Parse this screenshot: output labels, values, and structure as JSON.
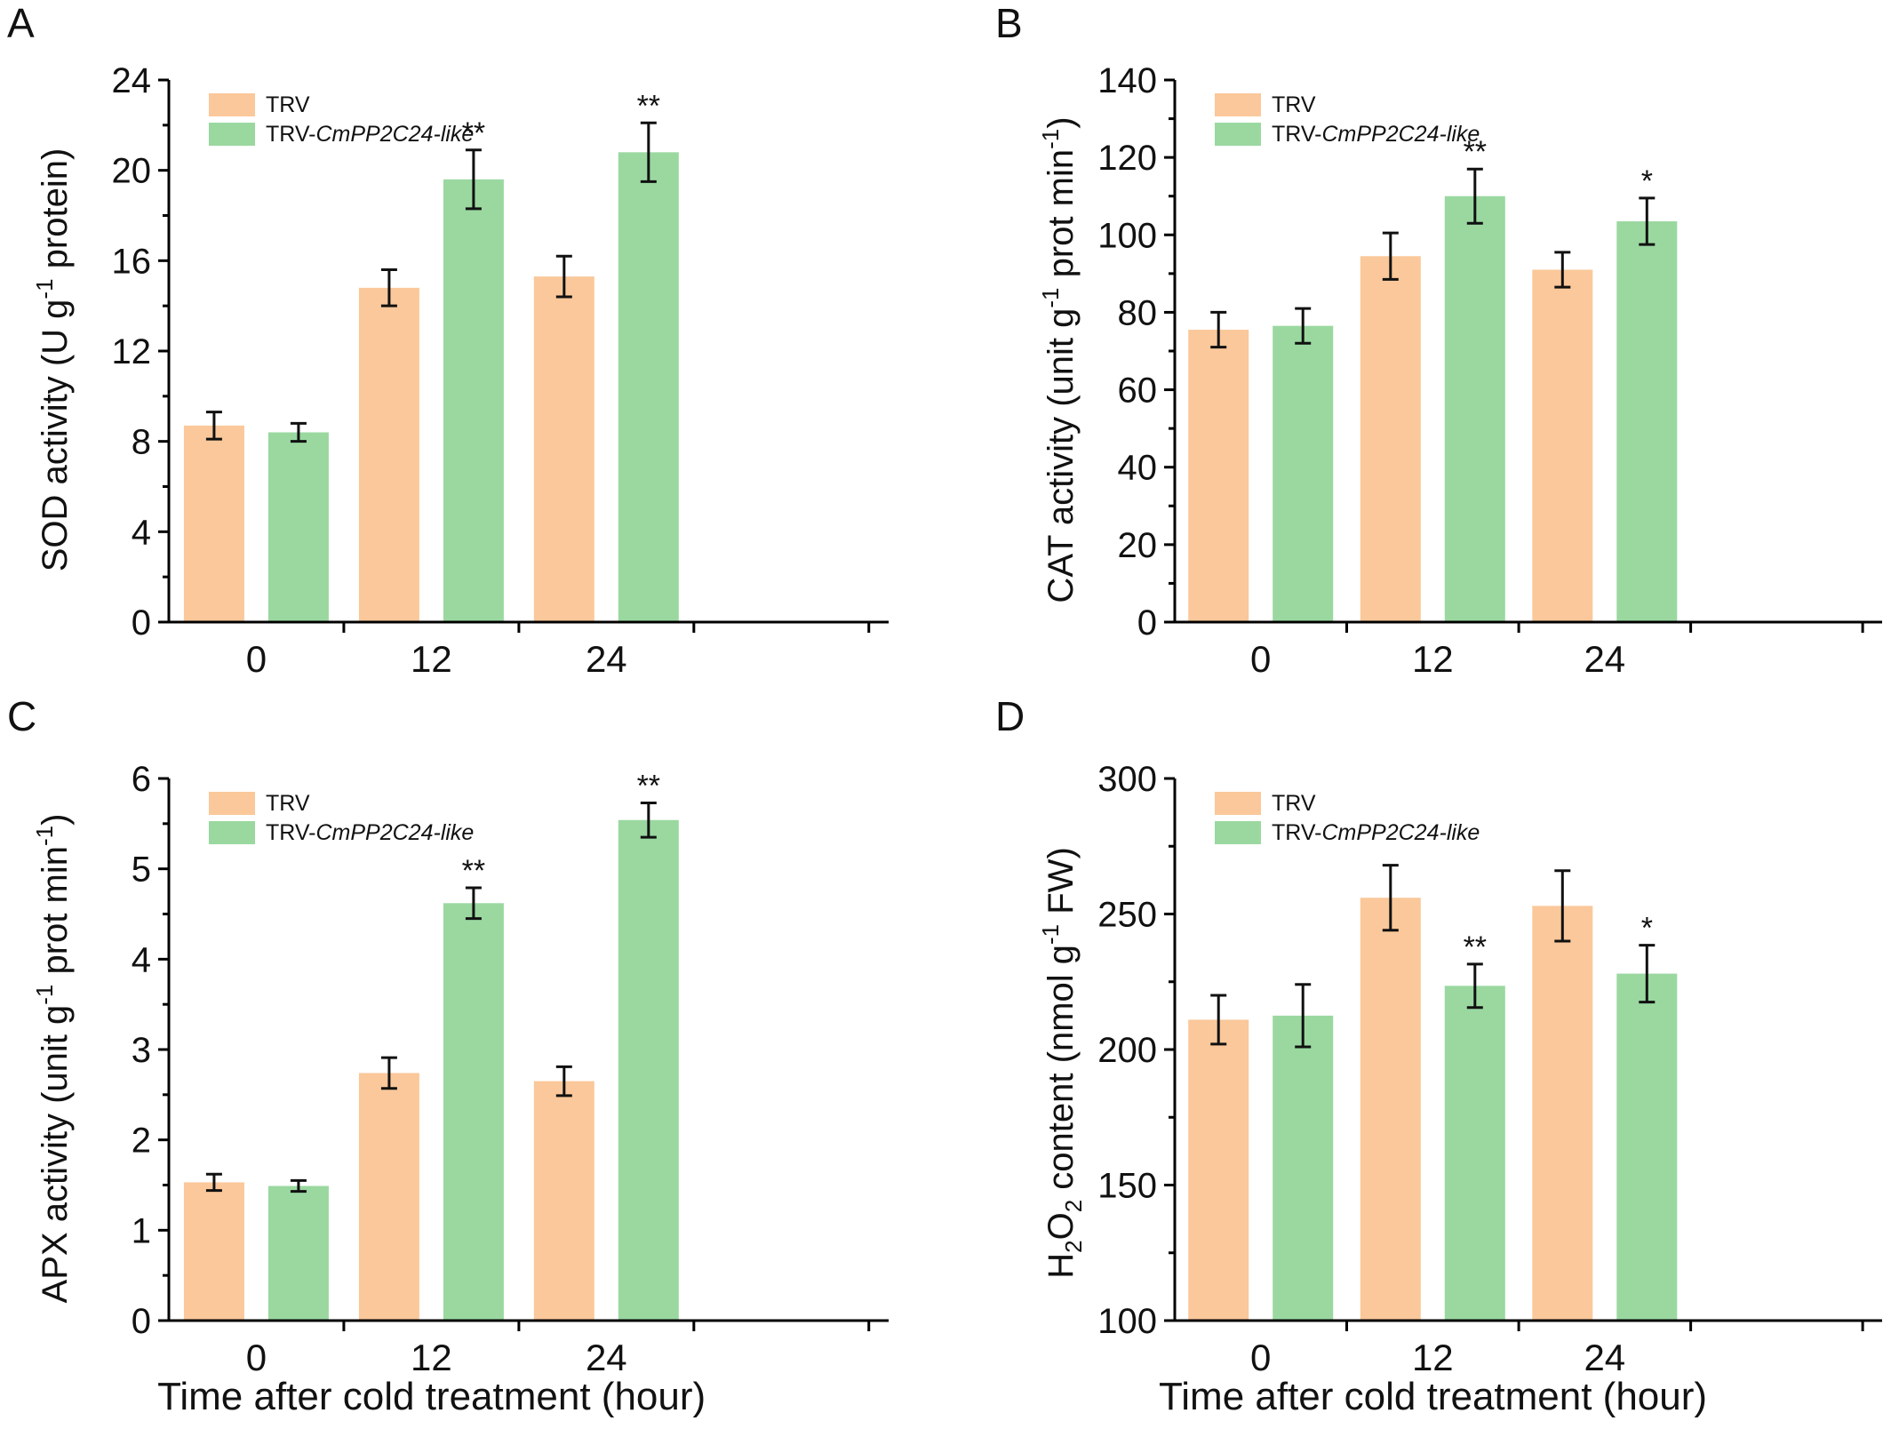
{
  "colors": {
    "TRV": "#fac89a",
    "TRV-CmPP2C24-like": "#9ad8a0",
    "axis": "#000000"
  },
  "legend": {
    "TRV": {
      "plain": "TRV",
      "italic": ""
    },
    "TRV-CmPP2C24-like": {
      "plain": "TRV-",
      "italic": "CmPP2C24-like"
    }
  },
  "xaxis_title": "Time after cold treatment (hour)",
  "chart_data": [
    {
      "panel": "A",
      "type": "bar",
      "categories": [
        "0",
        "12",
        "24"
      ],
      "ylabel": {
        "main": "SOD activity (U g",
        "sup": "-1",
        "tail": " protein)"
      },
      "ylim": [
        0,
        24
      ],
      "yticks": [
        0,
        4,
        8,
        12,
        16,
        20,
        24
      ],
      "show_xlabel": false,
      "series": [
        {
          "name": "TRV",
          "values": [
            8.7,
            14.8,
            15.3
          ],
          "errors": [
            0.6,
            0.8,
            0.9
          ],
          "sig": [
            "",
            "",
            ""
          ]
        },
        {
          "name": "TRV-CmPP2C24-like",
          "values": [
            8.4,
            19.6,
            20.8
          ],
          "errors": [
            0.4,
            1.3,
            1.3
          ],
          "sig": [
            "",
            "**",
            "**"
          ]
        }
      ]
    },
    {
      "panel": "B",
      "type": "bar",
      "categories": [
        "0",
        "12",
        "24"
      ],
      "ylabel": {
        "main": "CAT activity (unit g",
        "sup": "-1",
        "tail": " prot min",
        "sup2": "-1",
        "tail2": ")"
      },
      "ylim": [
        0,
        140
      ],
      "yticks": [
        0,
        20,
        40,
        60,
        80,
        100,
        120,
        140
      ],
      "show_xlabel": false,
      "series": [
        {
          "name": "TRV",
          "values": [
            75.5,
            94.5,
            91.0
          ],
          "errors": [
            4.5,
            6.0,
            4.5
          ],
          "sig": [
            "",
            "",
            ""
          ]
        },
        {
          "name": "TRV-CmPP2C24-like",
          "values": [
            76.5,
            110.0,
            103.5
          ],
          "errors": [
            4.5,
            7.0,
            6.0
          ],
          "sig": [
            "",
            "**",
            "*"
          ]
        }
      ]
    },
    {
      "panel": "C",
      "type": "bar",
      "categories": [
        "0",
        "12",
        "24"
      ],
      "ylabel": {
        "main": "APX activity (unit g",
        "sup": "-1",
        "tail": " prot min",
        "sup2": "-1",
        "tail2": ")"
      },
      "ylim": [
        0,
        6
      ],
      "yticks": [
        0,
        1,
        2,
        3,
        4,
        5,
        6
      ],
      "show_xlabel": true,
      "series": [
        {
          "name": "TRV",
          "values": [
            1.53,
            2.74,
            2.65
          ],
          "errors": [
            0.09,
            0.17,
            0.16
          ],
          "sig": [
            "",
            "",
            ""
          ]
        },
        {
          "name": "TRV-CmPP2C24-like",
          "values": [
            1.49,
            4.62,
            5.54
          ],
          "errors": [
            0.06,
            0.17,
            0.19
          ],
          "sig": [
            "",
            "**",
            "**"
          ]
        }
      ]
    },
    {
      "panel": "D",
      "type": "bar",
      "categories": [
        "0",
        "12",
        "24"
      ],
      "ylabel": {
        "main": "H",
        "sub1": "2",
        "mid": "O",
        "sub2": "2",
        "tail": " content (nmol g",
        "sup": "-1",
        "tail2": " FW)"
      },
      "ylim": [
        100,
        300
      ],
      "yticks": [
        100,
        150,
        200,
        250,
        300
      ],
      "show_xlabel": true,
      "series": [
        {
          "name": "TRV",
          "values": [
            211,
            256,
            253
          ],
          "errors": [
            9,
            12,
            13
          ],
          "sig": [
            "",
            "",
            ""
          ]
        },
        {
          "name": "TRV-CmPP2C24-like",
          "values": [
            212.5,
            223.5,
            228
          ],
          "errors": [
            11.5,
            8,
            10.5
          ],
          "sig": [
            "",
            "**",
            "*"
          ]
        }
      ]
    }
  ]
}
